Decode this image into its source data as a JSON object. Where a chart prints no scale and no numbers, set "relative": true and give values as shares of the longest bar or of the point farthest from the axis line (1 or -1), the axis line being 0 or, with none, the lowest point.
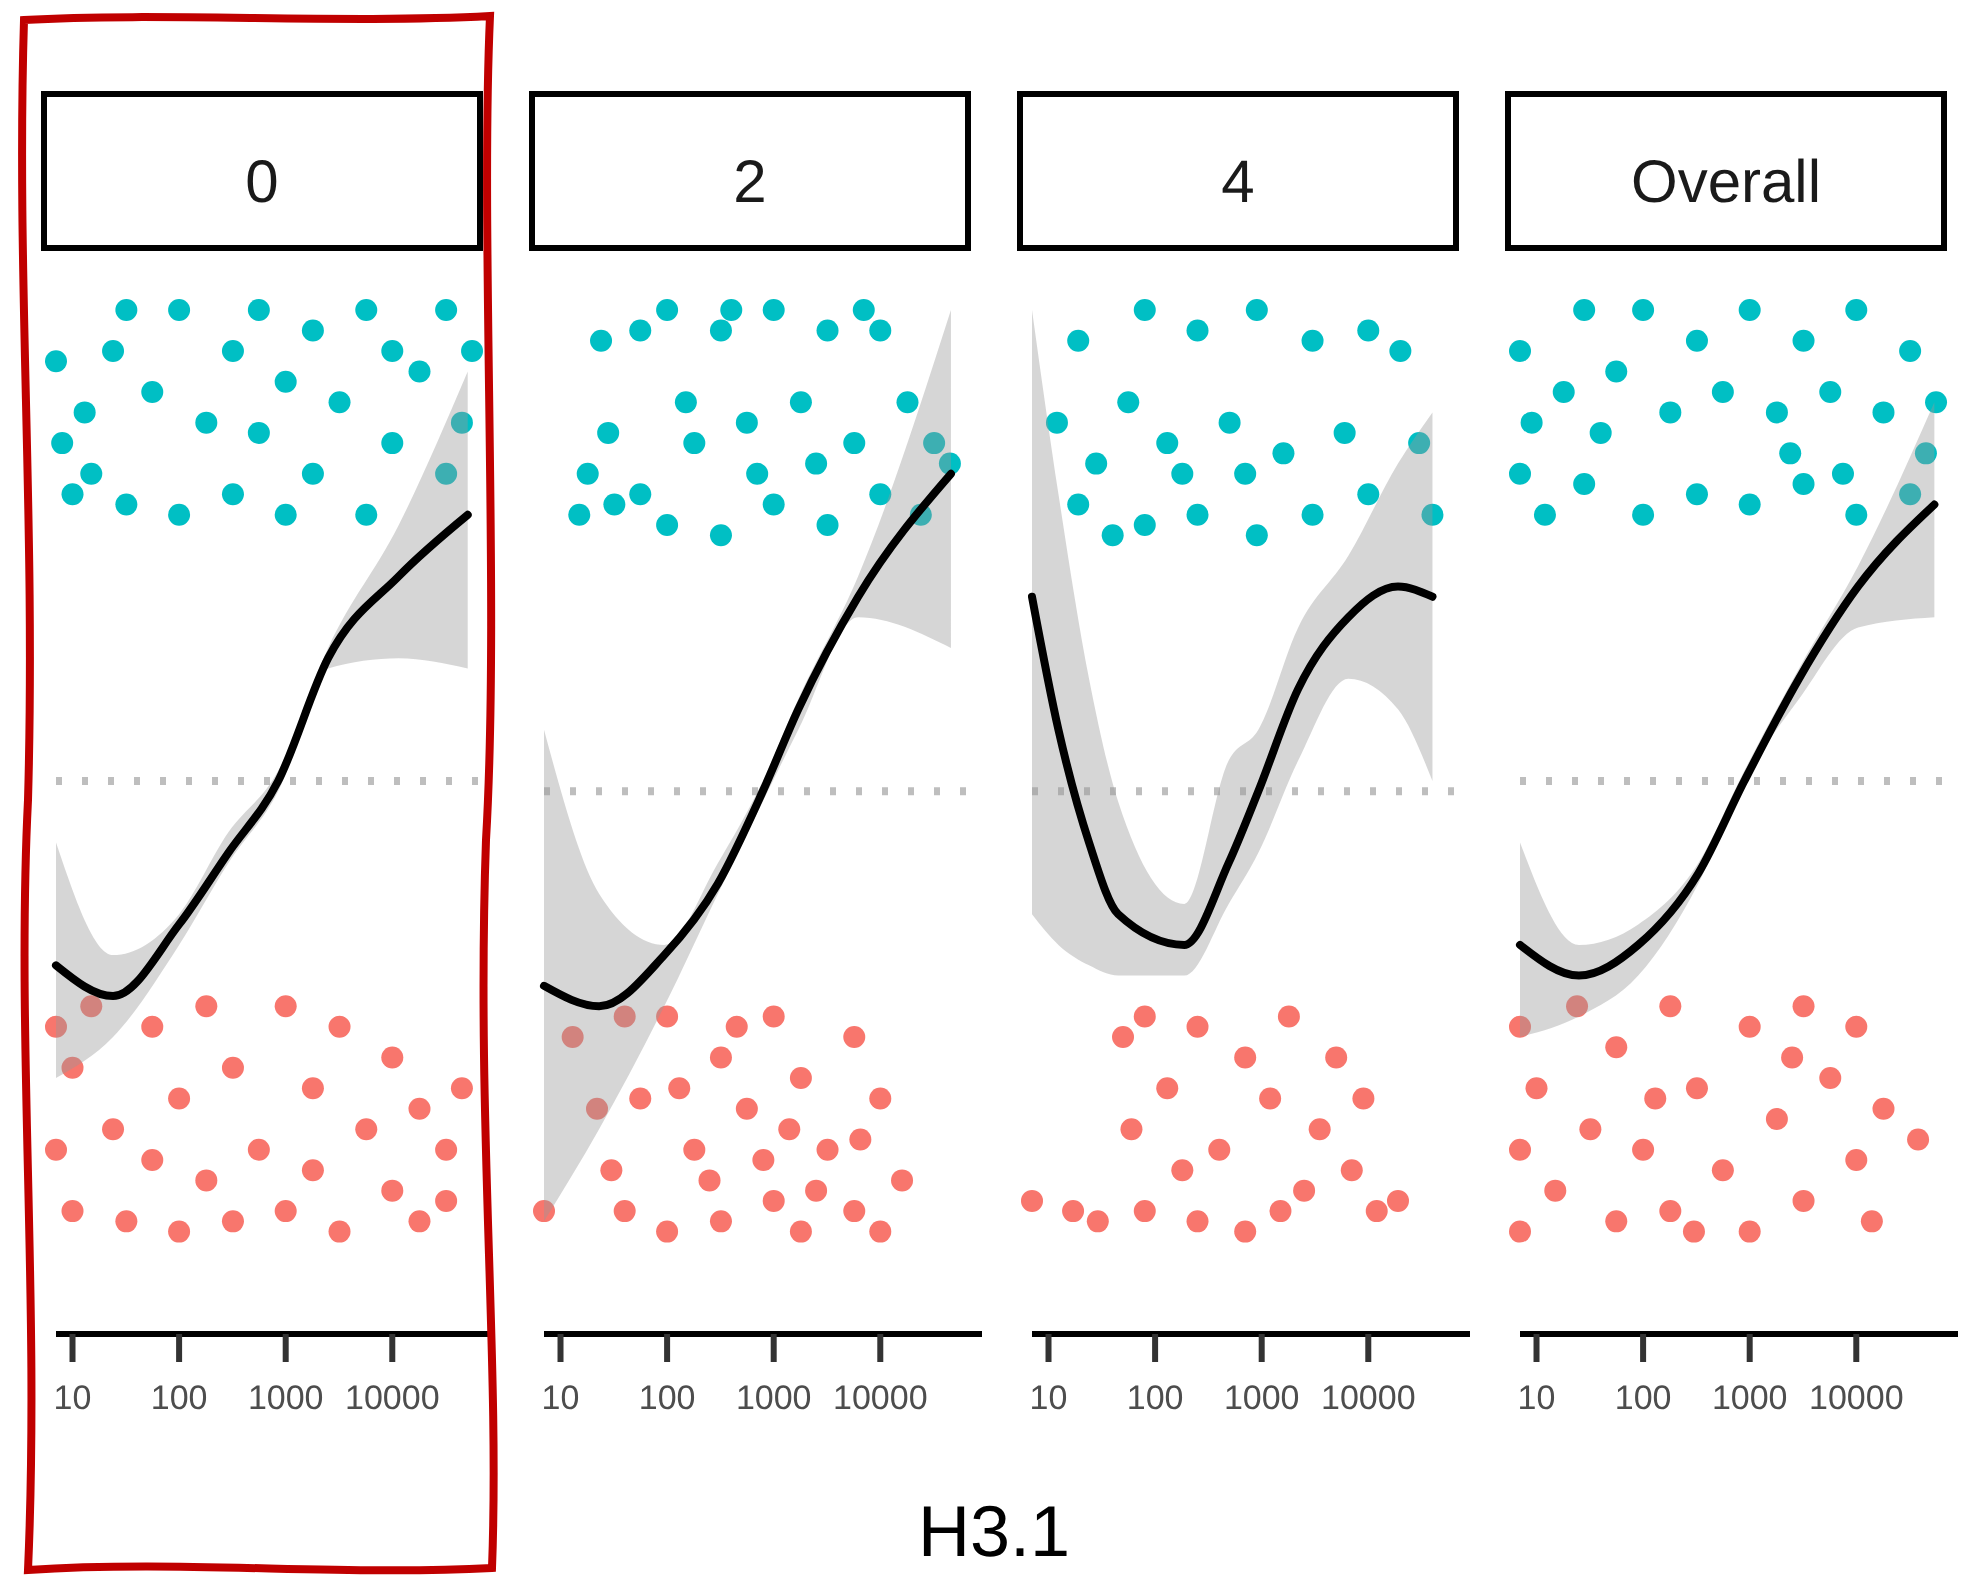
{
  "chart_data": [
    {
      "type": "line",
      "title": "0",
      "log": "x",
      "relative": true,
      "xlim": [
        7,
        90000
      ],
      "xticks": [
        10,
        100,
        1000,
        10000
      ],
      "grid": false,
      "ref_lines": [
        {
          "axis": "y",
          "value": 0.54,
          "color": "#bebebe",
          "line_style": "dotted"
        }
      ],
      "series": [
        {
          "type": "scatter",
          "color": "#00bfc4",
          "x": [
            7,
            8,
            10,
            13,
            15,
            24,
            32,
            32,
            56,
            100,
            100,
            180,
            320,
            320,
            560,
            560,
            1000,
            1000,
            1800,
            1800,
            3200,
            5700,
            5700,
            10000,
            10000,
            18000,
            32000,
            32000,
            56000,
            45000
          ],
          "values": [
            0.95,
            0.87,
            0.82,
            0.9,
            0.84,
            0.96,
            1.0,
            0.81,
            0.92,
            1.0,
            0.8,
            0.89,
            0.96,
            0.82,
            1.0,
            0.88,
            0.93,
            0.8,
            0.98,
            0.84,
            0.91,
            1.0,
            0.8,
            0.87,
            0.96,
            0.94,
            1.0,
            0.84,
            0.96,
            0.89
          ]
        },
        {
          "type": "scatter",
          "color": "#f8766d",
          "x": [
            7,
            7,
            10,
            10,
            15,
            24,
            32,
            56,
            56,
            100,
            100,
            180,
            180,
            320,
            320,
            560,
            1000,
            1000,
            1800,
            1800,
            3200,
            3200,
            5700,
            10000,
            10000,
            18000,
            18000,
            32000,
            45000,
            32000
          ],
          "values": [
            0.3,
            0.18,
            0.26,
            0.12,
            0.32,
            0.2,
            0.11,
            0.3,
            0.17,
            0.23,
            0.1,
            0.32,
            0.15,
            0.26,
            0.11,
            0.18,
            0.32,
            0.12,
            0.24,
            0.16,
            0.3,
            0.1,
            0.2,
            0.27,
            0.14,
            0.22,
            0.11,
            0.18,
            0.24,
            0.13
          ]
        },
        {
          "type": "line",
          "color": "#000000",
          "x": [
            7,
            24,
            100,
            290,
            850,
            2500,
            11500,
            51000
          ],
          "values": [
            0.36,
            0.33,
            0.4,
            0.47,
            0.54,
            0.66,
            0.74,
            0.8
          ],
          "upper": [
            0.48,
            0.37,
            0.41,
            0.49,
            0.55,
            0.67,
            0.79,
            0.94
          ],
          "lower": [
            0.25,
            0.29,
            0.38,
            0.46,
            0.53,
            0.65,
            0.66,
            0.65
          ]
        }
      ]
    },
    {
      "type": "line",
      "title": "2",
      "xlabel": "H3.1",
      "log": "x",
      "relative": true,
      "xlim": [
        7,
        90000
      ],
      "xticks": [
        10,
        100,
        1000,
        10000
      ],
      "grid": false,
      "ref_lines": [
        {
          "axis": "y",
          "value": 0.53,
          "color": "#bebebe",
          "line_style": "dotted"
        }
      ],
      "series": [
        {
          "type": "scatter",
          "color": "#00bfc4",
          "x": [
            15,
            18,
            24,
            28,
            32,
            56,
            100,
            100,
            180,
            320,
            320,
            560,
            1000,
            1000,
            1800,
            3200,
            3200,
            5700,
            10000,
            10000,
            18000,
            32000,
            45000,
            24000,
            150,
            700,
            2500,
            56,
            7000,
            400
          ],
          "values": [
            0.8,
            0.84,
            0.97,
            0.88,
            0.81,
            0.98,
            1.0,
            0.79,
            0.87,
            0.98,
            0.78,
            0.89,
            1.0,
            0.81,
            0.91,
            0.98,
            0.79,
            0.87,
            0.98,
            0.82,
            0.91,
            0.87,
            0.85,
            0.8,
            0.91,
            0.84,
            0.85,
            0.82,
            1.0,
            1.0
          ]
        },
        {
          "type": "scatter",
          "color": "#f8766d",
          "x": [
            7,
            13,
            22,
            30,
            40,
            40,
            56,
            100,
            100,
            180,
            320,
            320,
            560,
            1000,
            1000,
            1800,
            1800,
            3200,
            5700,
            5700,
            10000,
            10000,
            16000,
            250,
            800,
            2500,
            130,
            450,
            6500,
            1400
          ],
          "values": [
            0.12,
            0.29,
            0.22,
            0.16,
            0.31,
            0.12,
            0.23,
            0.31,
            0.1,
            0.18,
            0.27,
            0.11,
            0.22,
            0.31,
            0.13,
            0.25,
            0.1,
            0.18,
            0.29,
            0.12,
            0.23,
            0.1,
            0.15,
            0.15,
            0.17,
            0.14,
            0.24,
            0.3,
            0.19,
            0.2
          ]
        },
        {
          "type": "line",
          "color": "#000000",
          "x": [
            7,
            23,
            94,
            300,
            790,
            1700,
            6200,
            46000
          ],
          "values": [
            0.34,
            0.32,
            0.37,
            0.44,
            0.53,
            0.61,
            0.72,
            0.84
          ],
          "upper": [
            0.59,
            0.43,
            0.38,
            0.46,
            0.54,
            0.62,
            0.74,
            1.0
          ],
          "lower": [
            0.11,
            0.2,
            0.32,
            0.43,
            0.52,
            0.59,
            0.7,
            0.67
          ]
        }
      ]
    },
    {
      "type": "line",
      "title": "4",
      "log": "x",
      "relative": true,
      "xlim": [
        7,
        90000
      ],
      "xticks": [
        10,
        100,
        1000,
        10000
      ],
      "grid": false,
      "ref_lines": [
        {
          "axis": "y",
          "value": 0.53,
          "color": "#bebebe",
          "line_style": "dotted"
        }
      ],
      "series": [
        {
          "type": "scatter",
          "color": "#00bfc4",
          "x": [
            12,
            19,
            19,
            28,
            40,
            56,
            80,
            80,
            130,
            250,
            250,
            500,
            900,
            900,
            1600,
            3000,
            3000,
            6000,
            10000,
            10000,
            20000,
            30000,
            40000,
            700,
            180
          ],
          "values": [
            0.89,
            0.97,
            0.81,
            0.85,
            0.78,
            0.91,
            1.0,
            0.79,
            0.87,
            0.98,
            0.8,
            0.89,
            1.0,
            0.78,
            0.86,
            0.97,
            0.8,
            0.88,
            0.98,
            0.82,
            0.96,
            0.87,
            0.8,
            0.84,
            0.84
          ]
        },
        {
          "type": "scatter",
          "color": "#f8766d",
          "x": [
            7,
            17,
            29,
            50,
            60,
            80,
            80,
            130,
            250,
            250,
            400,
            700,
            700,
            1200,
            1800,
            2500,
            3500,
            5000,
            7000,
            12000,
            19000,
            9000,
            1500,
            180
          ],
          "values": [
            0.13,
            0.12,
            0.11,
            0.29,
            0.2,
            0.31,
            0.12,
            0.24,
            0.3,
            0.11,
            0.18,
            0.27,
            0.1,
            0.23,
            0.31,
            0.14,
            0.2,
            0.27,
            0.16,
            0.12,
            0.13,
            0.23,
            0.12,
            0.16
          ]
        },
        {
          "type": "line",
          "color": "#000000",
          "x": [
            7,
            12.4,
            24,
            45,
            188,
            490,
            930,
            2200,
            6500,
            19000,
            40000
          ],
          "values": [
            0.72,
            0.59,
            0.48,
            0.41,
            0.38,
            0.46,
            0.53,
            0.63,
            0.7,
            0.73,
            0.72
          ],
          "upper": [
            1.0,
            0.82,
            0.64,
            0.52,
            0.42,
            0.56,
            0.59,
            0.69,
            0.76,
            0.85,
            0.9
          ],
          "lower": [
            0.41,
            0.38,
            0.36,
            0.35,
            0.35,
            0.42,
            0.47,
            0.56,
            0.64,
            0.61,
            0.54
          ]
        }
      ]
    },
    {
      "type": "line",
      "title": "Overall",
      "log": "x",
      "relative": true,
      "xlim": [
        7,
        90000
      ],
      "xticks": [
        10,
        100,
        1000,
        10000
      ],
      "grid": false,
      "ref_lines": [
        {
          "axis": "y",
          "value": 0.54,
          "color": "#bebebe",
          "line_style": "dotted"
        }
      ],
      "series": [
        {
          "type": "scatter",
          "color": "#00bfc4",
          "x": [
            7,
            7,
            9,
            12,
            18,
            28,
            28,
            56,
            100,
            100,
            180,
            320,
            320,
            560,
            1000,
            1000,
            1800,
            3200,
            3200,
            5700,
            10000,
            10000,
            18000,
            32000,
            32000,
            56000,
            45000,
            40,
            2400,
            7500
          ],
          "values": [
            0.96,
            0.84,
            0.89,
            0.8,
            0.92,
            1.0,
            0.83,
            0.94,
            1.0,
            0.8,
            0.9,
            0.97,
            0.82,
            0.92,
            1.0,
            0.81,
            0.9,
            0.97,
            0.83,
            0.92,
            1.0,
            0.8,
            0.9,
            0.96,
            0.82,
            0.91,
            0.86,
            0.88,
            0.86,
            0.84
          ]
        },
        {
          "type": "scatter",
          "color": "#f8766d",
          "x": [
            7,
            7,
            7,
            10,
            15,
            24,
            32,
            56,
            56,
            100,
            180,
            180,
            320,
            560,
            1000,
            1000,
            1800,
            3200,
            3200,
            5700,
            10000,
            10000,
            14000,
            18000,
            38000,
            300,
            2500,
            130
          ],
          "values": [
            0.3,
            0.18,
            0.1,
            0.24,
            0.14,
            0.32,
            0.2,
            0.11,
            0.28,
            0.18,
            0.32,
            0.12,
            0.24,
            0.16,
            0.3,
            0.1,
            0.21,
            0.32,
            0.13,
            0.25,
            0.17,
            0.3,
            0.11,
            0.22,
            0.19,
            0.1,
            0.27,
            0.23
          ]
        },
        {
          "type": "line",
          "color": "#000000",
          "x": [
            7,
            25,
            90,
            330,
            890,
            2900,
            10400,
            54000
          ],
          "values": [
            0.38,
            0.35,
            0.38,
            0.45,
            0.54,
            0.64,
            0.73,
            0.81
          ],
          "upper": [
            0.48,
            0.38,
            0.4,
            0.46,
            0.55,
            0.65,
            0.75,
            0.91
          ],
          "lower": [
            0.29,
            0.31,
            0.35,
            0.44,
            0.54,
            0.62,
            0.69,
            0.7
          ]
        }
      ]
    }
  ]
}
